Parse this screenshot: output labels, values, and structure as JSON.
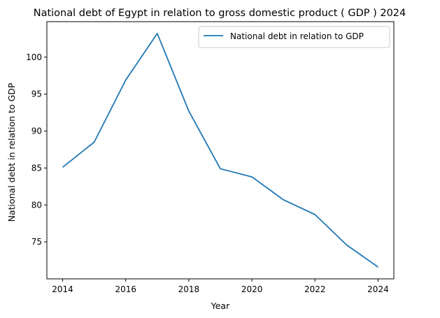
{
  "chart_data": {
    "type": "line",
    "title": "National debt of Egypt in relation to gross domestic product ( GDP ) 2024",
    "xlabel": "Year",
    "ylabel": "National debt in relation to GDP",
    "x": [
      2014,
      2015,
      2016,
      2017,
      2018,
      2019,
      2020,
      2021,
      2022,
      2023,
      2024
    ],
    "series": [
      {
        "name": "National debt in relation to GDP",
        "color": "#1f77b4",
        "values": [
          85.1,
          88.5,
          96.9,
          103.2,
          92.7,
          84.9,
          83.8,
          80.7,
          78.7,
          74.6,
          71.6
        ]
      }
    ],
    "xlim": [
      2013.5,
      2024.5
    ],
    "ylim": [
      70.0,
      104.8
    ],
    "xticks": [
      2014,
      2016,
      2018,
      2020,
      2022,
      2024
    ],
    "yticks": [
      75,
      80,
      85,
      90,
      95,
      100
    ],
    "grid": false,
    "legend_position": "top-right"
  }
}
